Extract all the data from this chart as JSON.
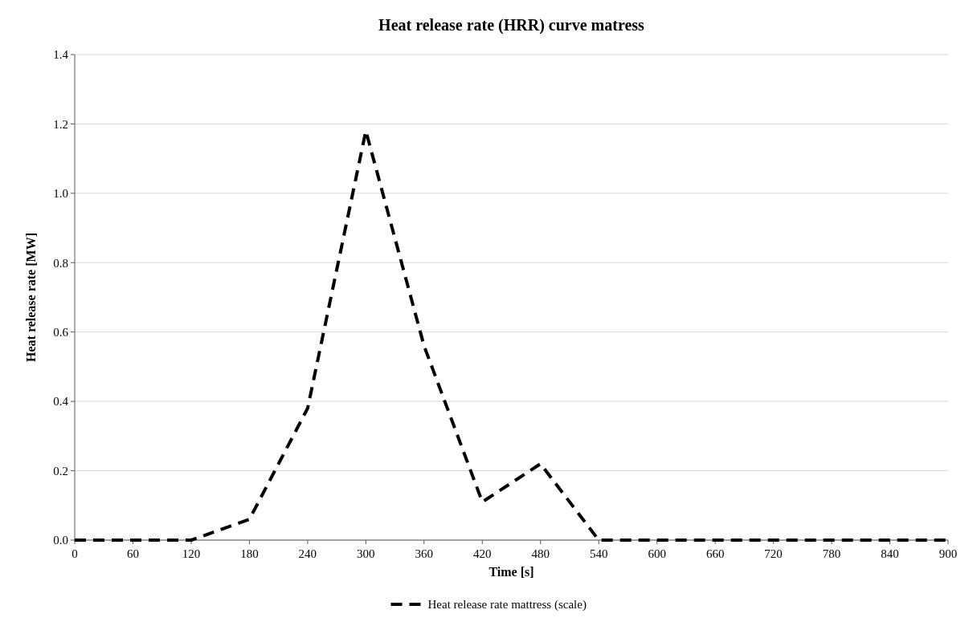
{
  "chart_data": {
    "type": "line",
    "title": "Heat release rate (HRR) curve matress",
    "xlabel": "Time [s]",
    "ylabel": "Heat release rate [MW]",
    "x": [
      0,
      60,
      120,
      180,
      240,
      300,
      360,
      420,
      480,
      540,
      600,
      660,
      720,
      780,
      840,
      900
    ],
    "series": [
      {
        "name": "Heat release rate mattress (scale)",
        "color": "#000000",
        "line_style": "dashed",
        "values": [
          0,
          0,
          0,
          0.06,
          0.38,
          1.18,
          0.56,
          0.11,
          0.22,
          0,
          0,
          0,
          0,
          0,
          0,
          0
        ]
      }
    ],
    "xlim": [
      0,
      900
    ],
    "xticks": [
      0,
      60,
      120,
      180,
      240,
      300,
      360,
      420,
      480,
      540,
      600,
      660,
      720,
      780,
      840,
      900
    ],
    "ylim": [
      0,
      1.4
    ],
    "yticks": [
      {
        "value": 0,
        "label": "0.0"
      },
      {
        "value": 0.2,
        "label": "0.2"
      },
      {
        "value": 0.4,
        "label": "0.4"
      },
      {
        "value": 0.6,
        "label": "0.6"
      },
      {
        "value": 0.8,
        "label": "0.8"
      },
      {
        "value": 1,
        "label": "1.0"
      },
      {
        "value": 1.2,
        "label": "1.2"
      },
      {
        "value": 1.4,
        "label": "1.4"
      }
    ],
    "grid": "y",
    "legend": "bottom",
    "marker": "none"
  }
}
